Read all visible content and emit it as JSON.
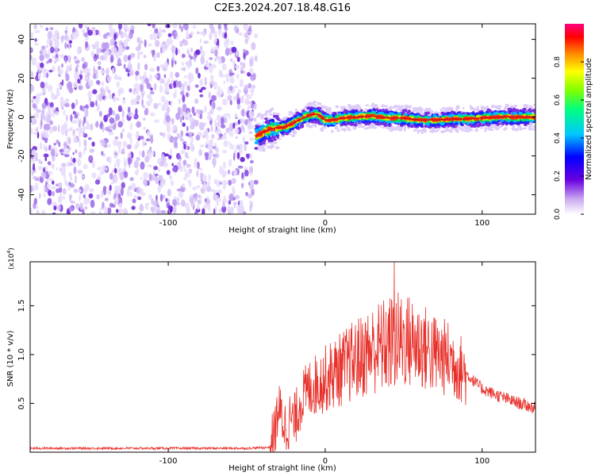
{
  "title": "C2E3.2024.207.18.48.G16",
  "colors": {
    "snr_line": "#e8302a",
    "axes": "#000000",
    "background": "#ffffff"
  },
  "colorbar": {
    "label": "Normalized spectral amplitude",
    "ticks": [
      "0.0",
      "0.2",
      "0.4",
      "0.6",
      "0.8"
    ],
    "tick_values": [
      0.0,
      0.2,
      0.4,
      0.6,
      0.8
    ],
    "range": [
      0,
      1
    ],
    "colormap": "rainbow (white-violet-blue-cyan-green-yellow-red-magenta)"
  },
  "chart_data": [
    {
      "type": "heatmap",
      "xlabel": "Height of straight line (km)",
      "ylabel": "Frequency (Hz)",
      "xlim": [
        -188,
        134
      ],
      "ylim": [
        -50,
        48
      ],
      "x_ticks": [
        "-100",
        "0",
        "100"
      ],
      "x_tick_values": [
        -100,
        0,
        100
      ],
      "y_ticks": [
        "40",
        "20",
        "0",
        "-20",
        "-40"
      ],
      "y_tick_values": [
        40,
        20,
        0,
        -20,
        -40
      ],
      "noise_region_x": [
        -188,
        -44
      ],
      "signal_ridge": {
        "x": [
          -44,
          -40,
          -35,
          -30,
          -25,
          -20,
          -15,
          -10,
          -5,
          0,
          5,
          10,
          20,
          30,
          40,
          50,
          60,
          70,
          80,
          90,
          100,
          110,
          120,
          134
        ],
        "freq": [
          -10,
          -8,
          -6,
          -5.5,
          -5,
          -3,
          -1,
          1,
          1.5,
          -1.5,
          -1.5,
          -0.5,
          0,
          0.5,
          -0.5,
          -0.5,
          -1.5,
          -1.5,
          -1,
          -1,
          -0.5,
          0,
          0,
          0
        ]
      }
    },
    {
      "type": "line",
      "xlabel": "Height of straight line (km)",
      "ylabel": "SNR (10 * v/v)",
      "multiplier": "(x10",
      "multiplier_exp": "4",
      "multiplier_close": ")",
      "xlim": [
        -188,
        134
      ],
      "ylim": [
        0,
        1.95
      ],
      "x_ticks": [
        "-100",
        "0",
        "100"
      ],
      "x_tick_values": [
        -100,
        0,
        100
      ],
      "y_ticks": [
        "0.5",
        "1.0",
        "1.5"
      ],
      "y_tick_values": [
        0.5,
        1.0,
        1.5
      ],
      "series": [
        {
          "x": [
            -188,
            -160,
            -120,
            -80,
            -50,
            -35,
            -32,
            -30,
            -25,
            -22,
            -20,
            -15,
            -10,
            -5,
            0,
            10,
            20,
            30,
            40,
            50,
            60,
            70,
            80,
            90,
            100,
            110,
            120,
            134
          ],
          "y": [
            0.04,
            0.04,
            0.04,
            0.04,
            0.04,
            0.05,
            0.2,
            0.45,
            0.25,
            0.35,
            0.3,
            0.55,
            0.65,
            0.7,
            0.75,
            0.85,
            0.95,
            1.05,
            1.1,
            1.15,
            1.1,
            1.0,
            0.95,
            0.8,
            0.65,
            0.58,
            0.52,
            0.45
          ],
          "peak": {
            "x": 44,
            "y": 1.95
          }
        }
      ]
    }
  ]
}
